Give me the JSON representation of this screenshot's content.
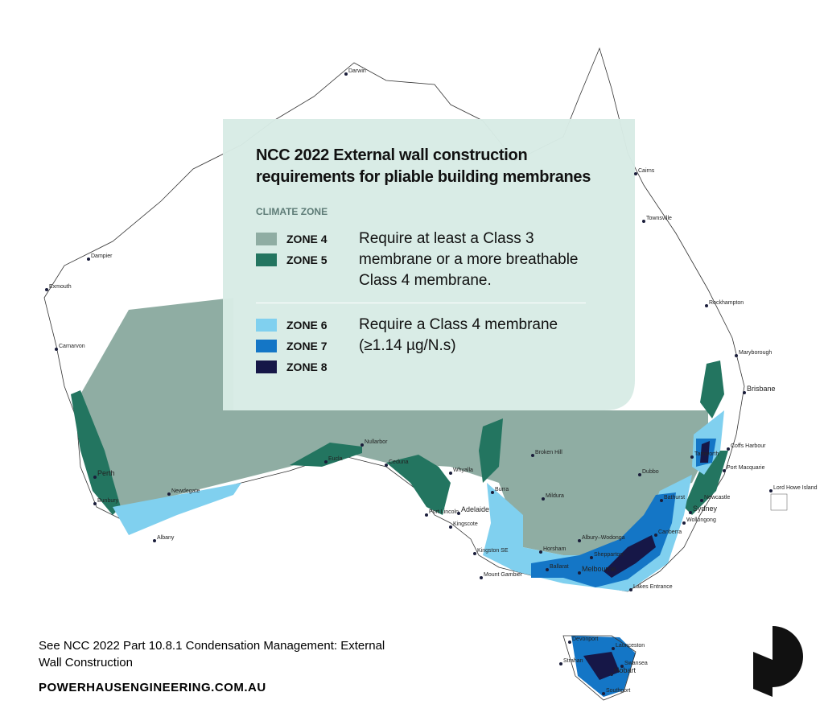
{
  "legend": {
    "title": "NCC 2022 External wall construction requirements for pliable building membranes",
    "heading": "CLIMATE ZONE",
    "groups": [
      {
        "zones": [
          {
            "label": "ZONE 4",
            "color": "#8fada3"
          },
          {
            "label": "ZONE 5",
            "color": "#237560"
          }
        ],
        "text": "Require at least a Class 3 membrane or a more breathable Class 4 membrane."
      },
      {
        "zones": [
          {
            "label": "ZONE 6",
            "color": "#80d0ef"
          },
          {
            "label": "ZONE 7",
            "color": "#1476c6"
          },
          {
            "label": "ZONE 8",
            "color": "#161747"
          }
        ],
        "text": "Require a Class 4 membrane (≥1.14 µg/N.s)"
      }
    ]
  },
  "map": {
    "cities": [
      "Darwin",
      "Cairns",
      "Townsville",
      "Dampier",
      "Exmouth",
      "Rockhampton",
      "Carnarvon",
      "Maryborough",
      "Brisbane",
      "Coffs Harbour",
      "Port Macquarie",
      "Perth",
      "Newdegate",
      "Nullarbor",
      "Eucla",
      "Ceduna",
      "Whyalla",
      "Broken Hill",
      "Dubbo",
      "Tamworth",
      "Burra",
      "Mildura",
      "Bunbury",
      "Port Lincoln",
      "Adelaide",
      "Bathurst",
      "Newcastle",
      "Sydney",
      "Wollongong",
      "Kingscote",
      "Canberra",
      "Albany",
      "Albury–Wodonga",
      "Horsham",
      "Kingston SE",
      "Shepparton",
      "Ballarat",
      "Melbourne",
      "Mount Gambier",
      "Lakes Entrance",
      "Lord Howe Island",
      "Devonport",
      "Launceston",
      "Strahan",
      "Swansea",
      "Hobart",
      "Southport"
    ]
  },
  "footer": {
    "note": "See NCC 2022 Part 10.8.1 Condensation Management: External Wall Construction",
    "website": "POWERHAUSENGINEERING.COM.AU"
  }
}
